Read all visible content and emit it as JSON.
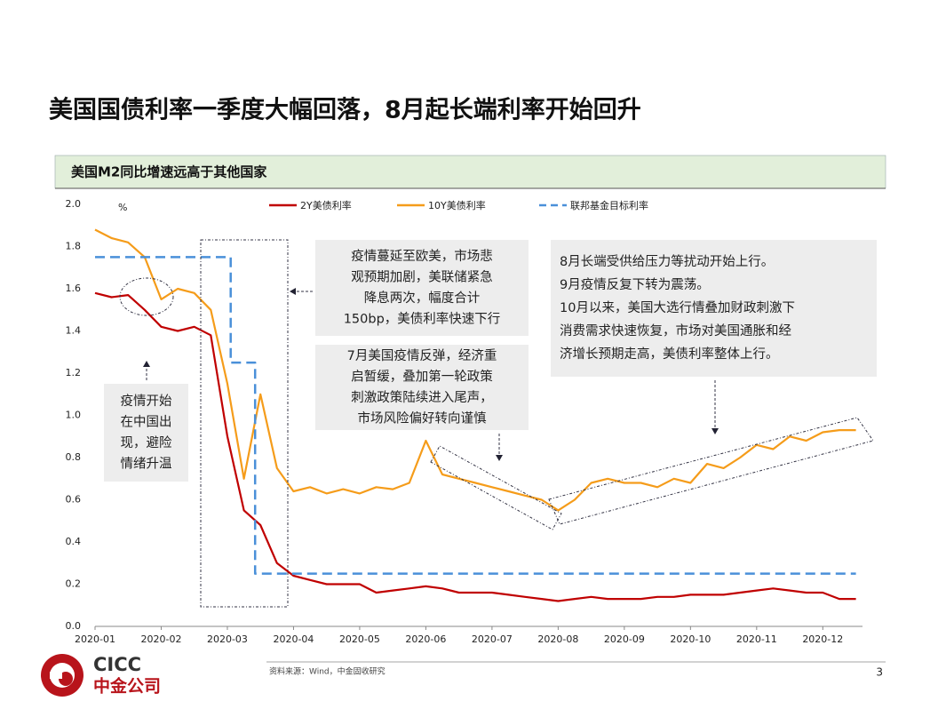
{
  "title": "美国国债利率一季度大幅回落，8月起长端利率开始回升",
  "panel_title": "美国M2同比增速远高于其他国家",
  "source": "资料来源：Wind，中金固收研究",
  "page_number": "3",
  "logo": {
    "en": "CICC",
    "cn": "中金公司"
  },
  "chart_data": {
    "type": "line",
    "y_unit": "%",
    "xlim": [
      0,
      11.6
    ],
    "xticks": [
      {
        "value": 0,
        "label": "2020-01"
      },
      {
        "value": 1,
        "label": "2020-02"
      },
      {
        "value": 2,
        "label": "2020-03"
      },
      {
        "value": 3,
        "label": "2020-04"
      },
      {
        "value": 4,
        "label": "2020-05"
      },
      {
        "value": 5,
        "label": "2020-06"
      },
      {
        "value": 6,
        "label": "2020-07"
      },
      {
        "value": 7,
        "label": "2020-08"
      },
      {
        "value": 8,
        "label": "2020-09"
      },
      {
        "value": 9,
        "label": "2020-10"
      },
      {
        "value": 10,
        "label": "2020-11"
      },
      {
        "value": 11,
        "label": "2020-12"
      }
    ],
    "ylim": [
      0,
      2
    ],
    "yticks": [
      {
        "value": 0,
        "label": "0.0"
      },
      {
        "value": 0.2,
        "label": "0.2"
      },
      {
        "value": 0.4,
        "label": "0.4"
      },
      {
        "value": 0.6,
        "label": "0.6"
      },
      {
        "value": 0.8,
        "label": "0.8"
      },
      {
        "value": 1,
        "label": "1.0"
      },
      {
        "value": 1.2,
        "label": "1.2"
      },
      {
        "value": 1.4,
        "label": "1.4"
      },
      {
        "value": 1.6,
        "label": "1.6"
      },
      {
        "value": 1.8,
        "label": "1.8"
      },
      {
        "value": 2,
        "label": "2.0"
      }
    ],
    "x": [
      0,
      0.25,
      0.5,
      0.75,
      1,
      1.25,
      1.5,
      1.75,
      2,
      2.25,
      2.5,
      2.75,
      3,
      3.25,
      3.5,
      3.75,
      4,
      4.25,
      4.5,
      4.75,
      5,
      5.25,
      5.5,
      5.75,
      6,
      6.25,
      6.5,
      6.75,
      7,
      7.25,
      7.5,
      7.75,
      8,
      8.25,
      8.5,
      8.75,
      9,
      9.25,
      9.5,
      9.75,
      10,
      10.25,
      10.5,
      10.75,
      11,
      11.25,
      11.5
    ],
    "series": [
      {
        "name": "2Y美债利率",
        "color": "#c00000",
        "line_style": "solid",
        "values": [
          1.58,
          1.56,
          1.57,
          1.5,
          1.42,
          1.4,
          1.42,
          1.38,
          0.9,
          0.55,
          0.48,
          0.3,
          0.24,
          0.22,
          0.2,
          0.2,
          0.2,
          0.16,
          0.17,
          0.18,
          0.19,
          0.18,
          0.16,
          0.16,
          0.16,
          0.15,
          0.14,
          0.13,
          0.12,
          0.13,
          0.14,
          0.13,
          0.13,
          0.13,
          0.14,
          0.14,
          0.15,
          0.15,
          0.15,
          0.16,
          0.17,
          0.18,
          0.17,
          0.16,
          0.16,
          0.13,
          0.13
        ]
      },
      {
        "name": "10Y美债利率",
        "color": "#f59c1a",
        "line_style": "solid",
        "values": [
          1.88,
          1.84,
          1.82,
          1.75,
          1.55,
          1.6,
          1.58,
          1.5,
          1.15,
          0.7,
          1.1,
          0.75,
          0.64,
          0.66,
          0.63,
          0.65,
          0.63,
          0.66,
          0.65,
          0.68,
          0.88,
          0.72,
          0.7,
          0.68,
          0.66,
          0.64,
          0.62,
          0.6,
          0.55,
          0.6,
          0.68,
          0.7,
          0.68,
          0.68,
          0.66,
          0.7,
          0.68,
          0.77,
          0.75,
          0.8,
          0.86,
          0.84,
          0.9,
          0.88,
          0.92,
          0.93,
          0.93
        ]
      },
      {
        "name": "联邦基金目标利率",
        "color": "#4a90d9",
        "line_style": "dashed",
        "x": [
          0,
          2.05,
          2.05,
          2.42,
          2.42,
          11.5
        ],
        "values": [
          1.75,
          1.75,
          1.25,
          1.25,
          0.25,
          0.25
        ]
      }
    ],
    "annotations": [
      {
        "lines": [
          "疫情开始",
          "在中国出",
          "现，避险",
          "情绪升温"
        ]
      },
      {
        "lines": [
          "疫情蔓延至欧美，市场悲",
          "观预期加剧，美联储紧急",
          "降息两次，幅度合计",
          "150bp，美债利率快速下行"
        ]
      },
      {
        "lines": [
          "7月美国疫情反弹，经济重",
          "启暂缓，叠加第一轮政策",
          "刺激政策陆续进入尾声，",
          "市场风险偏好转向谨慎"
        ]
      },
      {
        "lines": [
          "8月长端受供给压力等扰动开始上行。",
          "9月疫情反复下转为震荡。",
          "10月以来，美国大选行情叠加财政刺激下",
          "消费需求快速恢复，市场对美国通胀和经",
          "济增长预期走高，美债利率整体上行。"
        ]
      }
    ]
  }
}
